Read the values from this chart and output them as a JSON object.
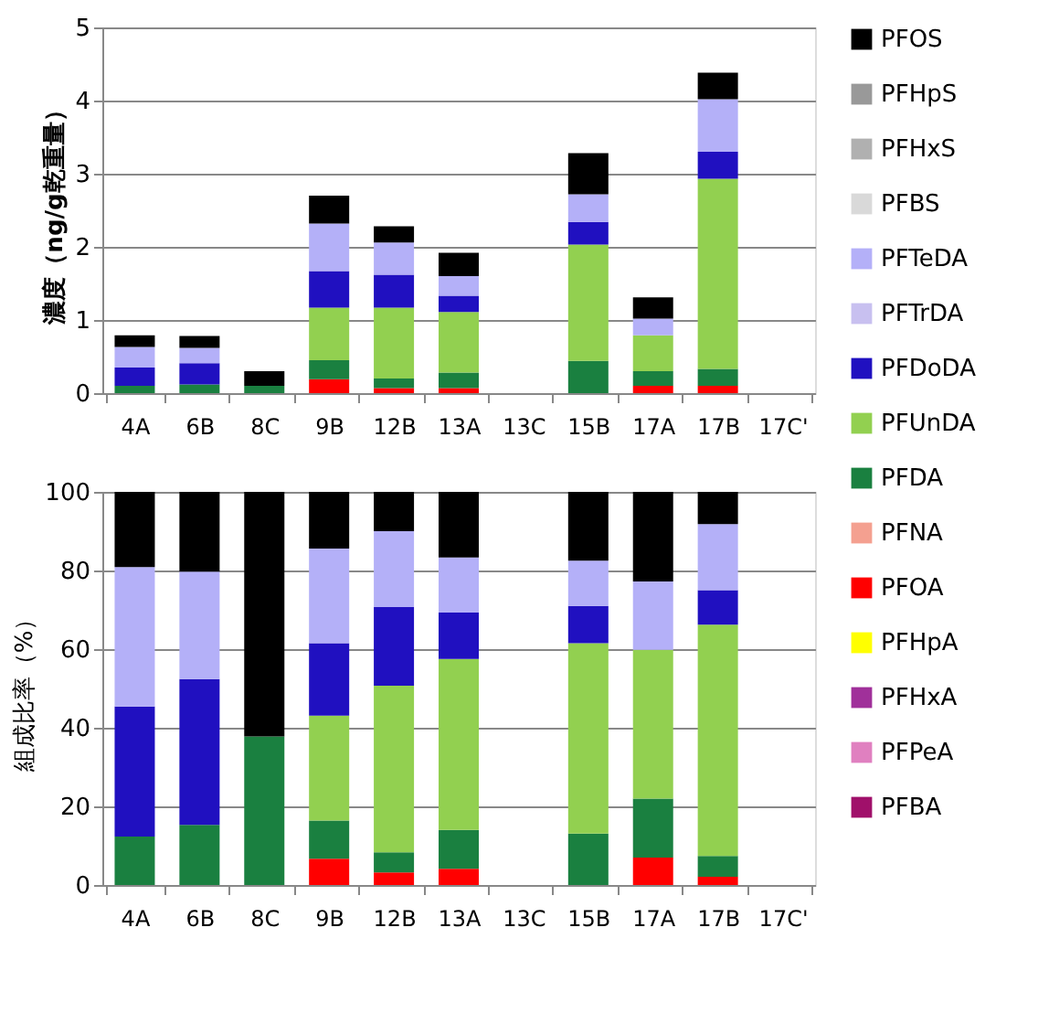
{
  "chart_data": [
    {
      "type": "bar",
      "stacked": true,
      "ylabel": "濃度（ng/g乾重量）",
      "categories": [
        "4A",
        "6B",
        "8C",
        "9B",
        "12B",
        "13A",
        "13C",
        "15B",
        "17A",
        "17B",
        "17C'"
      ],
      "ylim": [
        0,
        5
      ],
      "yticks": [
        0,
        1,
        2,
        3,
        4,
        5
      ],
      "grid": "y",
      "legend": "right",
      "series": [
        {
          "name": "PFBA",
          "color": "#a0106a",
          "values": [
            null,
            null,
            null,
            null,
            null,
            null,
            null,
            null,
            null,
            null,
            null
          ]
        },
        {
          "name": "PFPeA",
          "color": "#e080c0",
          "values": [
            null,
            null,
            null,
            null,
            null,
            null,
            null,
            null,
            null,
            null,
            null
          ]
        },
        {
          "name": "PFHxA",
          "color": "#a0309a",
          "values": [
            null,
            null,
            null,
            null,
            null,
            null,
            null,
            null,
            null,
            null,
            null
          ]
        },
        {
          "name": "PFHpA",
          "color": "#ffff00",
          "values": [
            null,
            null,
            null,
            null,
            null,
            null,
            null,
            null,
            null,
            null,
            null
          ]
        },
        {
          "name": "PFOA",
          "color": "#ff0000",
          "values": [
            null,
            null,
            null,
            0.19,
            0.07,
            0.07,
            null,
            null,
            0.1,
            0.1,
            null
          ]
        },
        {
          "name": "PFNA",
          "color": "#f4a090",
          "values": [
            null,
            null,
            null,
            null,
            null,
            null,
            null,
            null,
            null,
            null,
            null
          ]
        },
        {
          "name": "PFDA",
          "color": "#1a8040",
          "values": [
            0.1,
            0.12,
            0.1,
            0.26,
            0.13,
            0.21,
            null,
            0.44,
            0.2,
            0.23,
            null
          ]
        },
        {
          "name": "PFUnDA",
          "color": "#92d050",
          "values": [
            null,
            null,
            null,
            0.72,
            0.97,
            0.83,
            null,
            1.59,
            0.49,
            2.6,
            null
          ]
        },
        {
          "name": "PFDoDA",
          "color": "#2010c0",
          "values": [
            0.25,
            0.29,
            null,
            0.5,
            0.45,
            0.22,
            null,
            0.31,
            null,
            0.37,
            null
          ]
        },
        {
          "name": "PFTrDA",
          "color": "#c8c0f0",
          "values": [
            null,
            null,
            null,
            null,
            null,
            null,
            null,
            null,
            null,
            null,
            null
          ]
        },
        {
          "name": "PFTeDA",
          "color": "#b4b0f8",
          "values": [
            0.28,
            0.21,
            null,
            0.65,
            0.44,
            0.27,
            null,
            0.38,
            0.23,
            0.72,
            null
          ]
        },
        {
          "name": "PFBS",
          "color": "#d9d9d9",
          "values": [
            null,
            null,
            null,
            null,
            null,
            null,
            null,
            null,
            null,
            null,
            null
          ]
        },
        {
          "name": "PFHxS",
          "color": "#b0b0b0",
          "values": [
            null,
            null,
            null,
            null,
            null,
            null,
            null,
            null,
            null,
            null,
            null
          ]
        },
        {
          "name": "PFHpS",
          "color": "#999999",
          "values": [
            null,
            null,
            null,
            null,
            null,
            null,
            null,
            null,
            null,
            null,
            null
          ]
        },
        {
          "name": "PFOS",
          "color": "#000000",
          "values": [
            0.16,
            0.16,
            0.2,
            0.38,
            0.22,
            0.32,
            null,
            0.56,
            0.29,
            0.36,
            null
          ]
        }
      ]
    },
    {
      "type": "bar",
      "stacked": true,
      "ylabel": "組成比率（%）",
      "categories": [
        "4A",
        "6B",
        "8C",
        "9B",
        "12B",
        "13A",
        "13C",
        "15B",
        "17A",
        "17B",
        "17C'"
      ],
      "ylim": [
        0,
        100
      ],
      "yticks": [
        0,
        20,
        40,
        60,
        80,
        100
      ],
      "grid": "y",
      "legend": "right",
      "series": [
        {
          "color": "#a0106a",
          "values": [
            null,
            null,
            null,
            null,
            null,
            null,
            null,
            null,
            null,
            null,
            null
          ]
        },
        {
          "color": "#e080c0",
          "values": [
            null,
            null,
            null,
            null,
            null,
            null,
            null,
            null,
            null,
            null,
            null
          ]
        },
        {
          "color": "#a0309a",
          "values": [
            null,
            null,
            null,
            null,
            null,
            null,
            null,
            null,
            null,
            null,
            null
          ]
        },
        {
          "color": "#ffff00",
          "values": [
            null,
            null,
            null,
            null,
            null,
            null,
            null,
            null,
            null,
            null,
            null
          ]
        },
        {
          "color": "#ff0000",
          "values": [
            null,
            null,
            null,
            6.7,
            3.2,
            4.1,
            null,
            null,
            7.0,
            2.1,
            null
          ]
        },
        {
          "color": "#f4a090",
          "values": [
            null,
            null,
            null,
            null,
            null,
            null,
            null,
            null,
            null,
            null,
            null
          ]
        },
        {
          "color": "#1a8040",
          "values": [
            12.3,
            15.3,
            37.8,
            9.7,
            5.1,
            9.9,
            null,
            13.1,
            15.0,
            5.3,
            null
          ]
        },
        {
          "color": "#92d050",
          "values": [
            null,
            null,
            null,
            26.7,
            42.4,
            43.5,
            null,
            48.4,
            37.8,
            58.8,
            null
          ]
        },
        {
          "color": "#2010c0",
          "values": [
            33.1,
            37.1,
            null,
            18.4,
            20.0,
            11.8,
            null,
            9.5,
            null,
            8.8,
            null
          ]
        },
        {
          "color": "#c8c0f0",
          "values": [
            null,
            null,
            null,
            null,
            null,
            null,
            null,
            null,
            null,
            null,
            null
          ]
        },
        {
          "color": "#b4b0f8",
          "values": [
            35.5,
            27.3,
            null,
            24.1,
            19.3,
            14.0,
            null,
            11.5,
            17.4,
            16.8,
            null
          ]
        },
        {
          "color": "#d9d9d9",
          "values": [
            null,
            null,
            null,
            null,
            null,
            null,
            null,
            null,
            null,
            null,
            null
          ]
        },
        {
          "color": "#b0b0b0",
          "values": [
            null,
            null,
            null,
            null,
            null,
            null,
            null,
            null,
            null,
            null,
            null
          ]
        },
        {
          "color": "#999999",
          "values": [
            null,
            null,
            null,
            null,
            null,
            null,
            null,
            null,
            null,
            null,
            null
          ]
        },
        {
          "color": "#000000",
          "values": [
            19.1,
            20.3,
            62.2,
            14.4,
            10.0,
            16.7,
            null,
            17.5,
            22.8,
            8.2,
            null
          ]
        }
      ]
    }
  ]
}
